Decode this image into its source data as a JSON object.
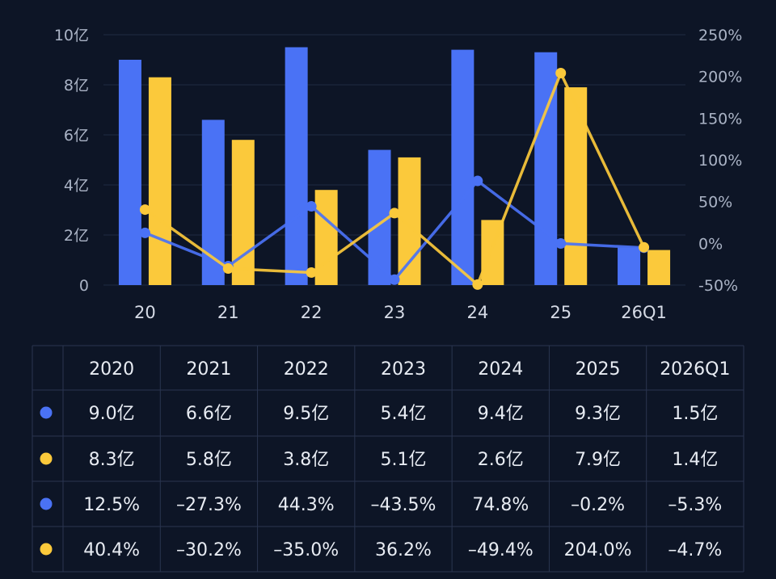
{
  "chart_data": {
    "type": "bar",
    "categories": [
      "20",
      "21",
      "22",
      "23",
      "24",
      "25",
      "26Q1"
    ],
    "yticks_left": [
      "0",
      "2亿",
      "4亿",
      "6亿",
      "8亿",
      "10亿"
    ],
    "yticks_right": [
      "-50%",
      "0%",
      "50%",
      "100%",
      "150%",
      "200%",
      "250%"
    ],
    "ylim_left": [
      0,
      10
    ],
    "ylim_right": [
      -50,
      250
    ],
    "grid": true,
    "bars": [
      {
        "color": "#4a72f5",
        "values": [
          9.0,
          6.6,
          9.5,
          5.4,
          9.4,
          9.3,
          1.5
        ]
      },
      {
        "color": "#fbc93b",
        "values": [
          8.3,
          5.8,
          3.8,
          5.1,
          2.6,
          7.9,
          1.4
        ]
      }
    ],
    "lines": [
      {
        "color": "#4a72f5",
        "axis": "right",
        "values": [
          12.5,
          -27.3,
          44.3,
          -43.5,
          74.8,
          -0.2,
          -5.3
        ]
      },
      {
        "color": "#fbc93b",
        "axis": "right",
        "values": [
          40.4,
          -30.2,
          -35.0,
          36.2,
          -49.4,
          204.0,
          -4.7
        ]
      }
    ]
  },
  "table": {
    "headers": [
      "2020",
      "2021",
      "2022",
      "2023",
      "2024",
      "2025",
      "2026Q1"
    ],
    "rows": [
      {
        "color": "#4a72f5",
        "cells": [
          "9.0亿",
          "6.6亿",
          "9.5亿",
          "5.4亿",
          "9.4亿",
          "9.3亿",
          "1.5亿"
        ]
      },
      {
        "color": "#fbc93b",
        "cells": [
          "8.3亿",
          "5.8亿",
          "3.8亿",
          "5.1亿",
          "2.6亿",
          "7.9亿",
          "1.4亿"
        ]
      },
      {
        "color": "#4a72f5",
        "cells": [
          "12.5%",
          "–27.3%",
          "44.3%",
          "–43.5%",
          "74.8%",
          "–0.2%",
          "–5.3%"
        ]
      },
      {
        "color": "#fbc93b",
        "cells": [
          "40.4%",
          "–30.2%",
          "–35.0%",
          "36.2%",
          "–49.4%",
          "204.0%",
          "–4.7%"
        ]
      }
    ]
  }
}
